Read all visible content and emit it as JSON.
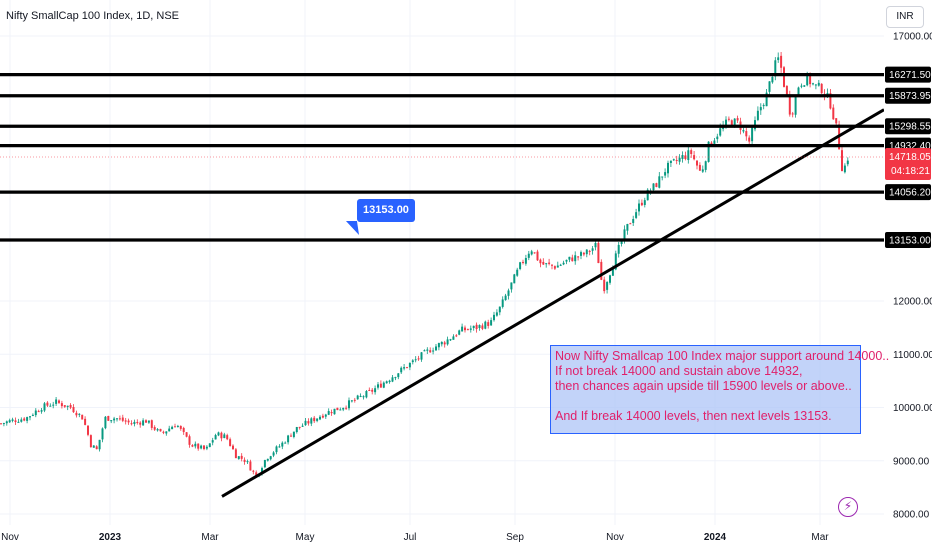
{
  "header": {
    "title": "Nifty SmallCap 100 Index, 1D, NSE",
    "currency": "INR"
  },
  "annotation": {
    "lines": [
      "Now Nifty Smallcap 100 Index major support around 14000..",
      "If not break 14000 and sustain above 14932,",
      "then chances again upside till 15900 levels or above..",
      "",
      "And If break 14000 levels, then next levels 13153."
    ],
    "callout": "13153.00"
  },
  "icons": {
    "bolt": "lightning-icon"
  },
  "chart_data": {
    "type": "candlestick",
    "y_axis_ticks": [
      "17000.00",
      "12000.00",
      "11000.00",
      "10000.00",
      "9000.00",
      "8000.00"
    ],
    "ylim": [
      7900,
      17350
    ],
    "x_axis_ticks": [
      "Nov",
      "2023",
      "Mar",
      "May",
      "Jul",
      "Sep",
      "Nov",
      "2024",
      "Mar"
    ],
    "x_tick_bold": [
      "2023",
      "2024"
    ],
    "horizontal_levels": [
      {
        "value": 16271.5,
        "label": "16271.50"
      },
      {
        "value": 15873.95,
        "label": "15873.95"
      },
      {
        "value": 15298.55,
        "label": "15298.55"
      },
      {
        "value": 14932.4,
        "label": "14932.40"
      },
      {
        "value": 14056.2,
        "label": "14056.20"
      },
      {
        "value": 13153.0,
        "label": "13153.00"
      }
    ],
    "last_price": {
      "value": 14718.05,
      "label": "14718.05",
      "countdown": "04:18:21"
    },
    "trendline": {
      "from": {
        "date": "2023-03",
        "value": 8330
      },
      "to": {
        "date": "2024-03",
        "value": 14800
      }
    },
    "up_color": "#089981",
    "down_color": "#f23645",
    "path": [
      [
        0,
        9700
      ],
      [
        10,
        9750
      ],
      [
        25,
        9800
      ],
      [
        40,
        10000
      ],
      [
        55,
        10100
      ],
      [
        70,
        10000
      ],
      [
        82,
        9800
      ],
      [
        90,
        9300
      ],
      [
        96,
        9200
      ],
      [
        104,
        9800
      ],
      [
        115,
        9800
      ],
      [
        130,
        9700
      ],
      [
        145,
        9750
      ],
      [
        160,
        9500
      ],
      [
        175,
        9700
      ],
      [
        190,
        9300
      ],
      [
        205,
        9200
      ],
      [
        215,
        9500
      ],
      [
        225,
        9450
      ],
      [
        235,
        9100
      ],
      [
        245,
        9000
      ],
      [
        255,
        8700
      ],
      [
        265,
        9050
      ],
      [
        280,
        9300
      ],
      [
        295,
        9600
      ],
      [
        310,
        9750
      ],
      [
        325,
        9900
      ],
      [
        340,
        10000
      ],
      [
        355,
        10150
      ],
      [
        370,
        10300
      ],
      [
        385,
        10500
      ],
      [
        400,
        10700
      ],
      [
        415,
        10900
      ],
      [
        430,
        11100
      ],
      [
        445,
        11250
      ],
      [
        460,
        11450
      ],
      [
        475,
        11500
      ],
      [
        490,
        11600
      ],
      [
        500,
        11900
      ],
      [
        510,
        12300
      ],
      [
        520,
        12700
      ],
      [
        530,
        13000
      ],
      [
        540,
        12700
      ],
      [
        555,
        12650
      ],
      [
        570,
        12800
      ],
      [
        585,
        12900
      ],
      [
        595,
        13050
      ],
      [
        602,
        12200
      ],
      [
        608,
        12500
      ],
      [
        618,
        13000
      ],
      [
        625,
        13350
      ],
      [
        635,
        13700
      ],
      [
        645,
        14000
      ],
      [
        655,
        14200
      ],
      [
        665,
        14500
      ],
      [
        680,
        14700
      ],
      [
        690,
        14800
      ],
      [
        700,
        14400
      ],
      [
        708,
        14950
      ],
      [
        718,
        15200
      ],
      [
        728,
        15400
      ],
      [
        738,
        15350
      ],
      [
        748,
        15000
      ],
      [
        758,
        15600
      ],
      [
        766,
        15900
      ],
      [
        772,
        16350
      ],
      [
        778,
        16600
      ],
      [
        784,
        16000
      ],
      [
        790,
        15500
      ],
      [
        798,
        16100
      ],
      [
        806,
        16200
      ],
      [
        814,
        16050
      ],
      [
        822,
        16000
      ],
      [
        830,
        15700
      ],
      [
        836,
        15200
      ],
      [
        842,
        14400
      ],
      [
        846,
        14700
      ],
      [
        849,
        14718
      ]
    ],
    "price_axis_anchors": [
      [
        17000,
        36
      ],
      [
        13153,
        240
      ],
      [
        12000,
        301
      ],
      [
        8000,
        514
      ]
    ]
  }
}
